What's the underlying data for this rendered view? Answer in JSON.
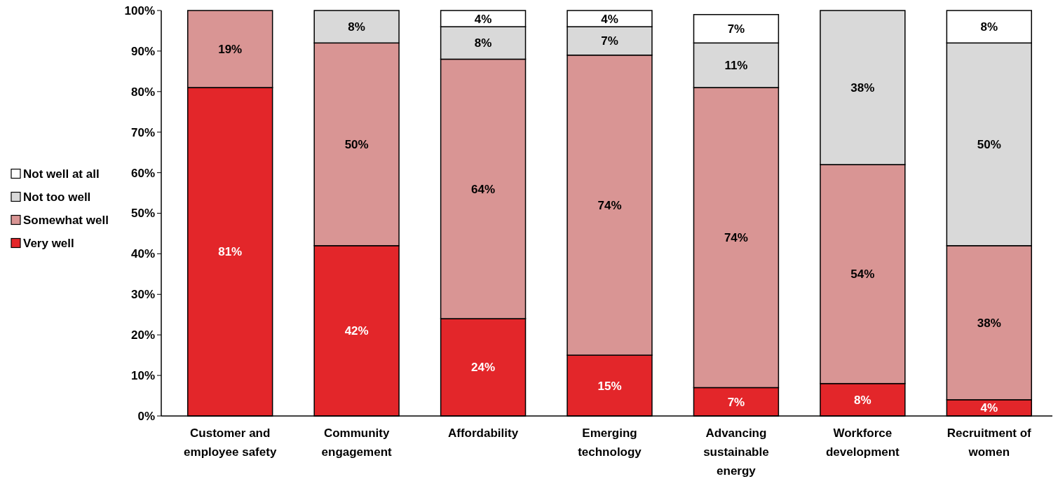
{
  "chart_data": {
    "type": "bar",
    "stacked": true,
    "categories": [
      "Customer and employee safety",
      "Community engagement",
      "Affordability",
      "Emerging technology",
      "Advancing sustainable energy",
      "Workforce development",
      "Recruitment of women"
    ],
    "series": [
      {
        "name": "Very well",
        "color": "#e3262a",
        "values": [
          81,
          42,
          24,
          15,
          7,
          8,
          4
        ],
        "value_labels": [
          "81%",
          "42%",
          "24%",
          "15%",
          "7%",
          "8%",
          "4%"
        ]
      },
      {
        "name": "Somewhat well",
        "color": "#d99594",
        "values": [
          19,
          50,
          64,
          74,
          74,
          54,
          38
        ],
        "value_labels": [
          "19%",
          "50%",
          "64%",
          "74%",
          "74%",
          "54%",
          "38%"
        ]
      },
      {
        "name": "Not too well",
        "color": "#d9d9d9",
        "values": [
          0,
          8,
          8,
          7,
          11,
          38,
          50
        ],
        "value_labels": [
          null,
          "8%",
          "8%",
          "7%",
          "11%",
          "38%",
          "50%"
        ]
      },
      {
        "name": "Not well at all",
        "color": "#ffffff",
        "values": [
          0,
          0,
          4,
          4,
          7,
          0,
          8
        ],
        "value_labels": [
          null,
          null,
          "4%",
          "4%",
          "7%",
          null,
          "8%"
        ]
      }
    ],
    "ylim": [
      0,
      100
    ],
    "yticks": [
      {
        "value": 0,
        "label": "0%"
      },
      {
        "value": 10,
        "label": "10%"
      },
      {
        "value": 20,
        "label": "20%"
      },
      {
        "value": 30,
        "label": "30%"
      },
      {
        "value": 40,
        "label": "40%"
      },
      {
        "value": 50,
        "label": "50%"
      },
      {
        "value": 60,
        "label": "60%"
      },
      {
        "value": 70,
        "label": "70%"
      },
      {
        "value": 80,
        "label": "80%"
      },
      {
        "value": 90,
        "label": "90%"
      },
      {
        "value": 100,
        "label": "100%"
      }
    ],
    "grid": false,
    "legend": "left"
  }
}
